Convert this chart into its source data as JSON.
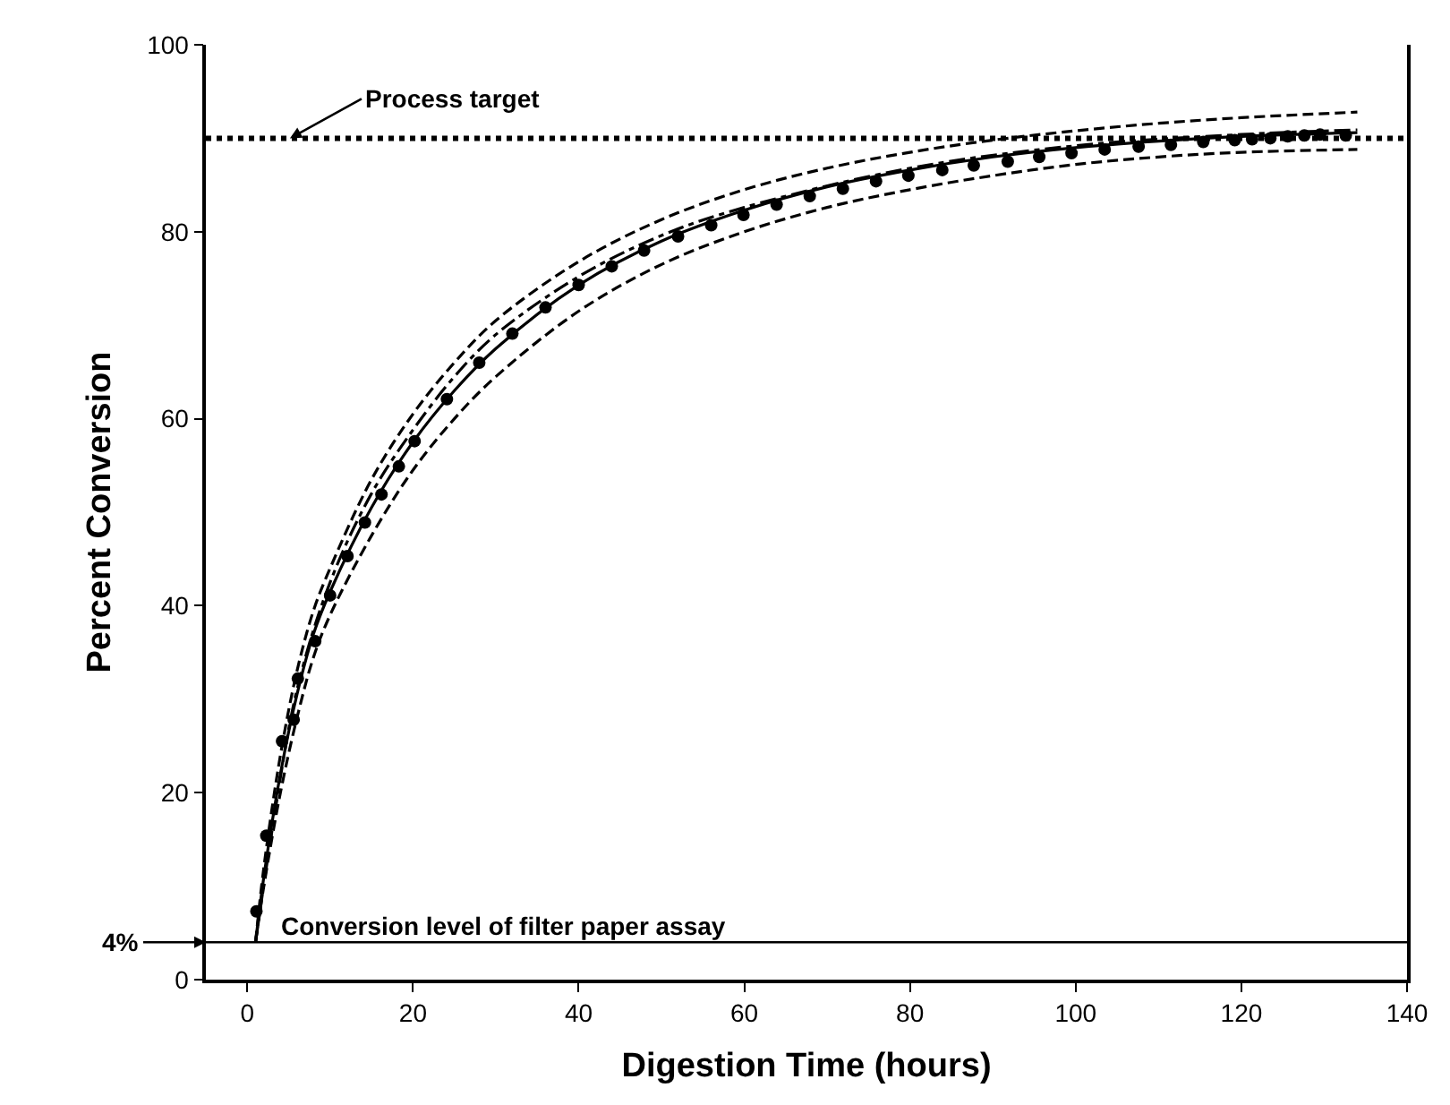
{
  "chart_data": {
    "type": "scatter",
    "xlabel": "Digestion Time (hours)",
    "ylabel": "Percent Conversion",
    "xlim": [
      -5,
      140
    ],
    "xticks": [
      0,
      20,
      40,
      60,
      80,
      100,
      120,
      140
    ],
    "ylim": [
      0,
      100
    ],
    "yticks": [
      0,
      20,
      40,
      60,
      80,
      100
    ],
    "series": [
      {
        "type": "line",
        "line_style": "dashed",
        "color": "#000000",
        "x": [
          1,
          2,
          4,
          6,
          8,
          10,
          15,
          20,
          25,
          30,
          40,
          50,
          60,
          70,
          80,
          90,
          100,
          110,
          120,
          134
        ],
        "values": [
          4,
          12,
          24,
          33,
          39.5,
          44,
          53.5,
          60.5,
          66,
          70.5,
          76.8,
          81.3,
          84.5,
          86.8,
          88.5,
          89.8,
          90.8,
          91.6,
          92.2,
          92.8
        ]
      },
      {
        "type": "line",
        "line_style": "dashed",
        "color": "#000000",
        "x": [
          1,
          2,
          4,
          6,
          8,
          10,
          15,
          20,
          25,
          30,
          40,
          50,
          60,
          70,
          80,
          90,
          100,
          110,
          120,
          134
        ],
        "values": [
          4,
          10,
          20,
          28,
          34.5,
          39,
          47.5,
          54.5,
          60,
          64.5,
          71.5,
          76.5,
          80,
          82.6,
          84.5,
          86,
          87.2,
          88,
          88.5,
          88.8
        ]
      },
      {
        "type": "line",
        "line_style": "dashdot",
        "color": "#000000",
        "x": [
          1,
          3,
          6,
          10,
          15,
          20,
          25,
          30,
          40,
          50,
          60,
          80,
          100,
          120,
          134
        ],
        "values": [
          4,
          16,
          31,
          42.5,
          52,
          58.8,
          64.5,
          69,
          75.2,
          79.6,
          82.6,
          86.8,
          89.2,
          90.4,
          90.9
        ]
      },
      {
        "type": "line",
        "line_style": "solid",
        "color": "#000000",
        "x": [
          1,
          2,
          4,
          6,
          8,
          10,
          15,
          20,
          25,
          30,
          40,
          50,
          60,
          70,
          80,
          90,
          100,
          110,
          120,
          134
        ],
        "values": [
          4,
          11,
          22,
          30.5,
          37,
          41.5,
          50.5,
          57.5,
          63,
          67.5,
          74.3,
          79,
          82.3,
          84.8,
          86.6,
          88,
          89,
          89.7,
          90.2,
          90.6
        ]
      },
      {
        "marker": "circle",
        "color": "#000000",
        "x": [
          1.1,
          2.3,
          4.2,
          5.6,
          6.1,
          8.2,
          10,
          12.1,
          14.2,
          16.2,
          18.3,
          20.2,
          24.1,
          28,
          32,
          36,
          40,
          44,
          47.9,
          52,
          56,
          59.9,
          63.9,
          67.9,
          71.9,
          75.9,
          79.8,
          83.9,
          87.7,
          91.8,
          95.6,
          99.5,
          103.5,
          107.6,
          111.5,
          115.4,
          119.2,
          121.3,
          123.5,
          125.6,
          127.6,
          129.5,
          132.6
        ],
        "values": [
          7.3,
          15.4,
          25.5,
          27.8,
          32.2,
          36.2,
          41.1,
          45.3,
          48.9,
          51.9,
          54.9,
          57.6,
          62.1,
          66,
          69.1,
          71.9,
          74.3,
          76.3,
          78,
          79.5,
          80.7,
          81.8,
          82.9,
          83.8,
          84.6,
          85.4,
          86,
          86.6,
          87.1,
          87.5,
          88,
          88.4,
          88.8,
          89.1,
          89.3,
          89.6,
          89.8,
          89.9,
          90,
          90.2,
          90.3,
          90.4,
          90.3
        ]
      }
    ],
    "ref_lines": [
      {
        "axis": "y",
        "value": 90,
        "label": "Process target",
        "line_style": "dotted",
        "color": "#000000"
      },
      {
        "axis": "y",
        "value": 4,
        "label": "Conversion level of filter paper assay",
        "line_style": "solid",
        "color": "#000000"
      }
    ],
    "annotations": [
      {
        "text": "4%",
        "x": -5,
        "y": 4
      }
    ]
  }
}
